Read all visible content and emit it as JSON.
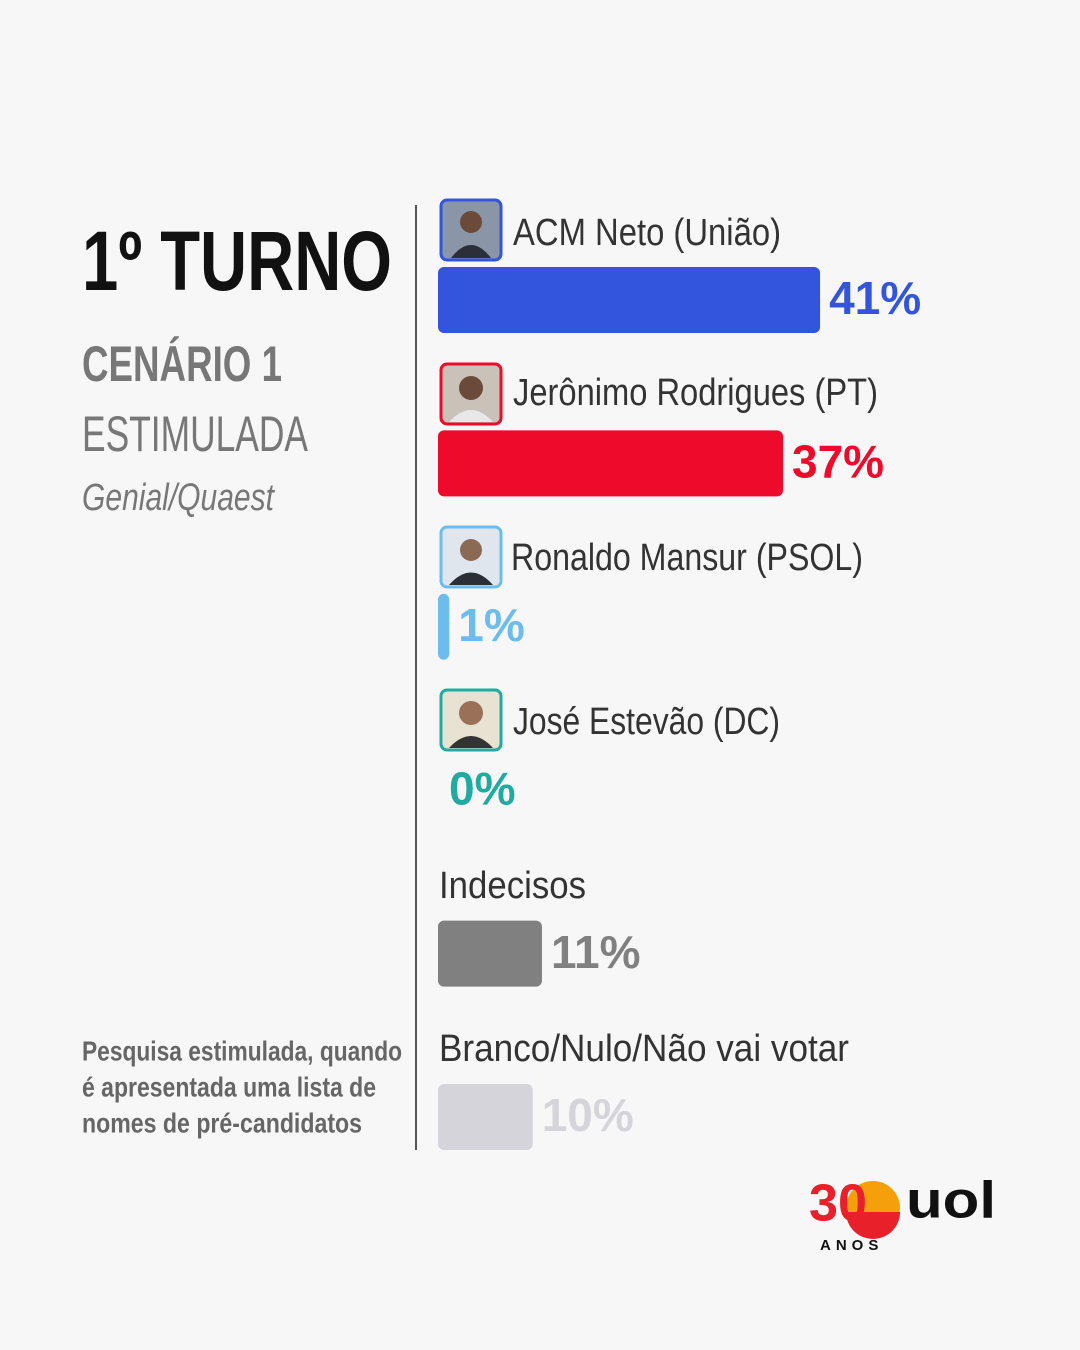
{
  "chart_data": {
    "type": "bar",
    "orientation": "horizontal",
    "title": "1º TURNO",
    "subtitle": "CENÁRIO 1",
    "mode": "ESTIMULADA",
    "source": "Genial/Quaest",
    "note": [
      "Pesquisa estimulada, quando",
      "é apresentada uma lista de",
      "nomes de pré-candidatos"
    ],
    "categories": [
      "ACM Neto (União)",
      "Jerônimo Rodrigues (PT)",
      "Ronaldo Mansur (PSOL)",
      "José Estevão (DC)",
      "Indecisos",
      "Branco/Nulo/Não vai votar"
    ],
    "values": [
      41,
      37,
      1,
      0,
      11,
      10
    ],
    "value_labels": [
      "41%",
      "37%",
      "1%",
      "0%",
      "11%",
      "10%"
    ],
    "colors": [
      "#3355dd",
      "#ee0a2a",
      "#6cbcee",
      "#20aaa0",
      "#808080",
      "#d4d4da"
    ]
  },
  "logo": {
    "number": "30",
    "brand": "uol",
    "caption": "ANOS"
  }
}
